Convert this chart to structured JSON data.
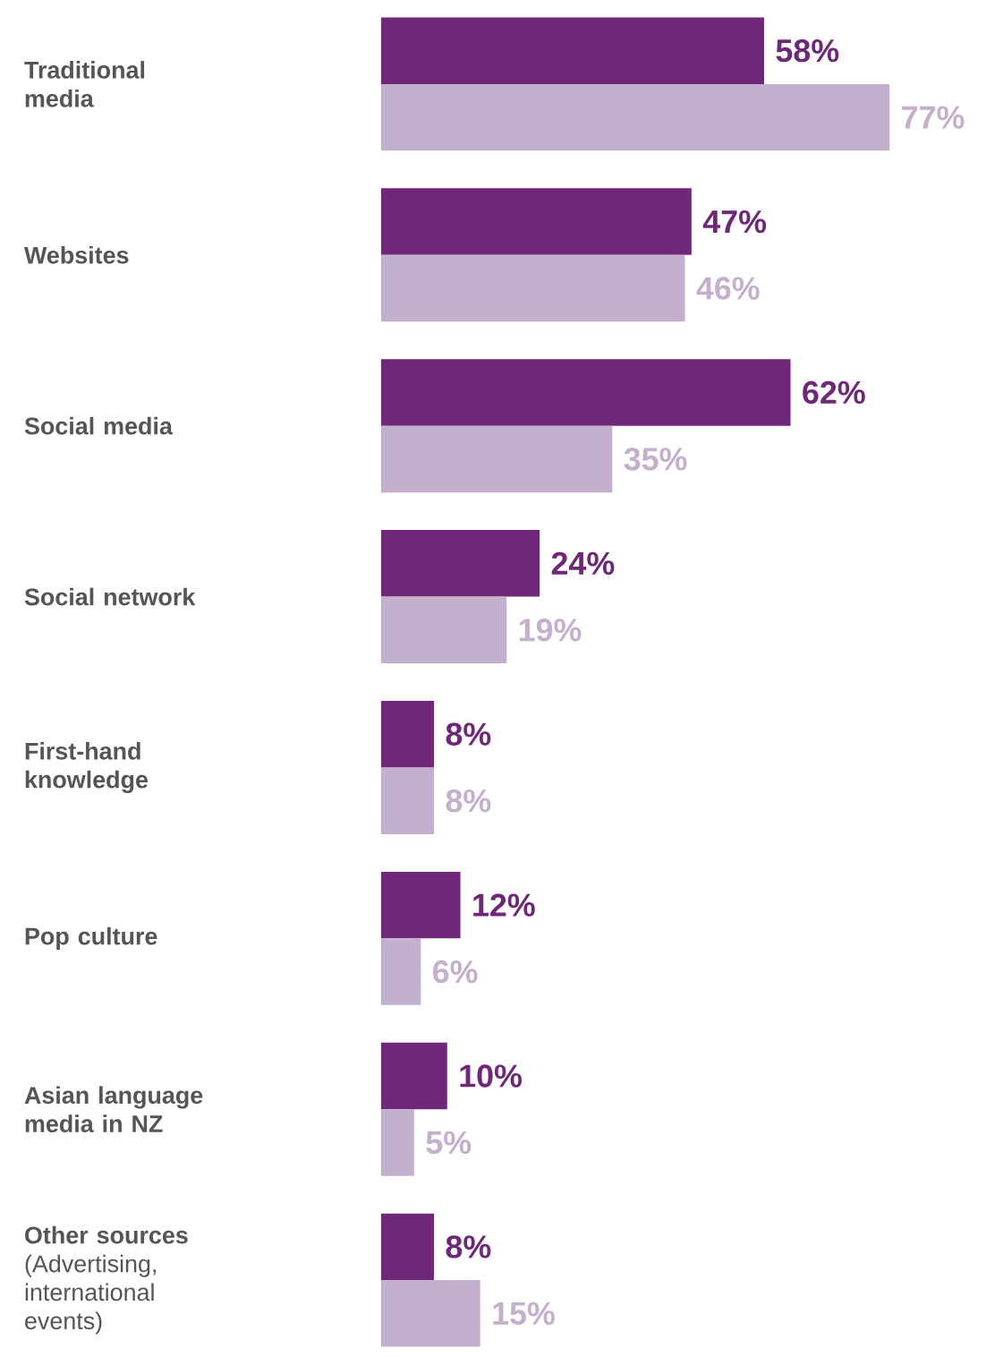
{
  "chart_data": {
    "type": "bar",
    "orientation": "horizontal",
    "categories": [
      "Traditional media",
      "Websites",
      "Social media",
      "Social network",
      "First-hand knowledge",
      "Pop culture",
      "Asian language media in NZ",
      "**Other sources** (Advertising, international events)"
    ],
    "series": [
      {
        "color": "#6f2878",
        "values": [
          58,
          47,
          62,
          24,
          8,
          12,
          10,
          8
        ],
        "value_labels": [
          "58%",
          "47%",
          "62%",
          "24%",
          "8%",
          "12%",
          "10%",
          "8%"
        ]
      },
      {
        "color": "#c4afcc",
        "values": [
          77,
          46,
          35,
          19,
          8,
          6,
          5,
          15
        ],
        "value_labels": [
          "77%",
          "46%",
          "35%",
          "19%",
          "8%",
          "6%",
          "5%",
          "15%"
        ]
      }
    ],
    "tick_labels": "y"
  }
}
